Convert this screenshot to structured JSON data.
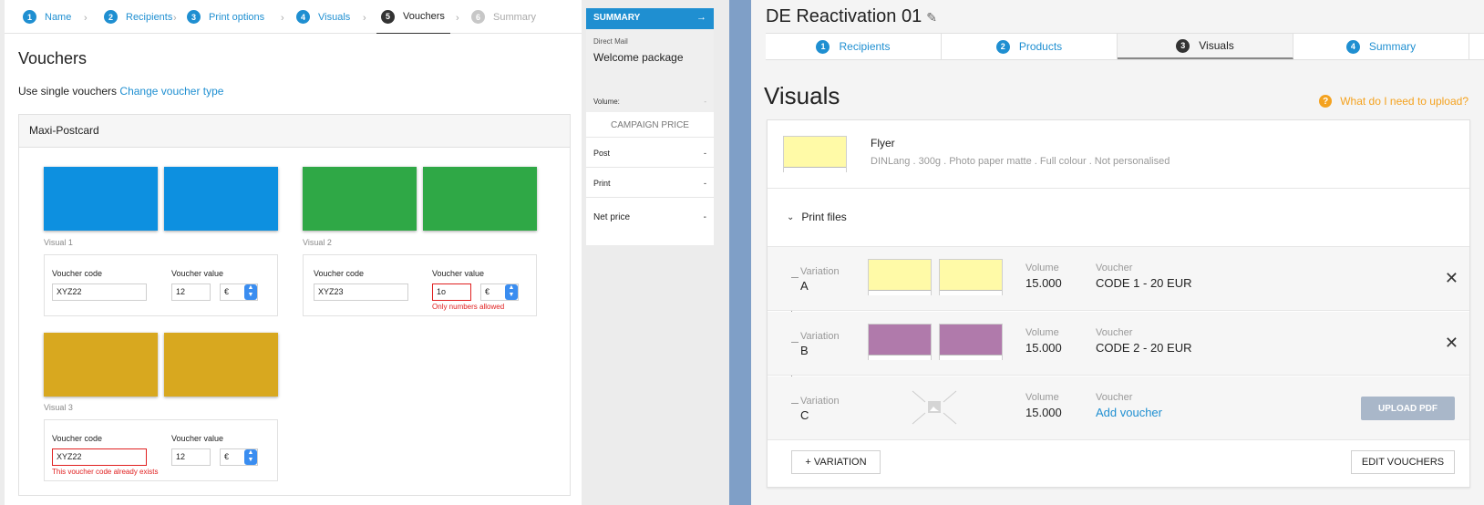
{
  "left": {
    "steps": [
      {
        "num": "1",
        "label": "Name"
      },
      {
        "num": "2",
        "label": "Recipients"
      },
      {
        "num": "3",
        "label": "Print options"
      },
      {
        "num": "4",
        "label": "Visuals"
      },
      {
        "num": "5",
        "label": "Vouchers"
      },
      {
        "num": "6",
        "label": "Summary"
      }
    ],
    "title": "Vouchers",
    "subtitle_text": "Use single vouchers",
    "subtitle_link": "Change voucher type",
    "panel_title": "Maxi-Postcard",
    "visuals": [
      {
        "label": "Visual 1",
        "color": "#0d90e0",
        "code_label": "Voucher code",
        "code": "XYZ22",
        "value_label": "Voucher value",
        "value": "12",
        "currency": "€",
        "error": ""
      },
      {
        "label": "Visual 2",
        "color": "#2fa846",
        "code_label": "Voucher code",
        "code": "XYZ23",
        "value_label": "Voucher value",
        "value": "1o",
        "currency": "€",
        "error": "Only numbers allowed"
      },
      {
        "label": "Visual 3",
        "color": "#d8a81f",
        "code_label": "Voucher code",
        "code": "XYZ22",
        "value_label": "Voucher value",
        "value": "12",
        "currency": "€",
        "error": "This voucher code already exists"
      }
    ],
    "summary": {
      "header": "SUMMARY",
      "direct_mail": "Direct Mail",
      "package": "Welcome package",
      "volume_label": "Volume:",
      "volume_value": "-",
      "campaign_price": "CAMPAIGN PRICE",
      "rows": [
        {
          "label": "Post",
          "value": "-"
        },
        {
          "label": "Print",
          "value": "-"
        },
        {
          "label": "Net price",
          "value": "-"
        }
      ]
    }
  },
  "right": {
    "title": "DE Reactivation 01",
    "tabs": [
      {
        "num": "1",
        "label": "Recipients"
      },
      {
        "num": "2",
        "label": "Products"
      },
      {
        "num": "3",
        "label": "Visuals"
      },
      {
        "num": "4",
        "label": "Summary"
      }
    ],
    "section_title": "Visuals",
    "help": "What do I need to upload?",
    "product_name": "Flyer",
    "product_desc": "DINLang . 300g . Photo paper matte . Full colour . Not personalised",
    "print_files": "Print files",
    "variations": [
      {
        "label": "Variation",
        "name": "A",
        "color": "#fffaa7",
        "volume_label": "Volume",
        "volume": "15.000",
        "voucher_label": "Voucher",
        "voucher": "CODE 1 - 20 EUR"
      },
      {
        "label": "Variation",
        "name": "B",
        "color": "#b07aab",
        "volume_label": "Volume",
        "volume": "15.000",
        "voucher_label": "Voucher",
        "voucher": "CODE 2 - 20 EUR"
      },
      {
        "label": "Variation",
        "name": "C",
        "color": "",
        "volume_label": "Volume",
        "volume": "15.000",
        "voucher_label": "Voucher",
        "voucher": "Add voucher"
      }
    ],
    "upload_pdf": "UPLOAD PDF",
    "add_variation": "+ VARIATION",
    "edit_vouchers": "EDIT VOUCHERS"
  }
}
